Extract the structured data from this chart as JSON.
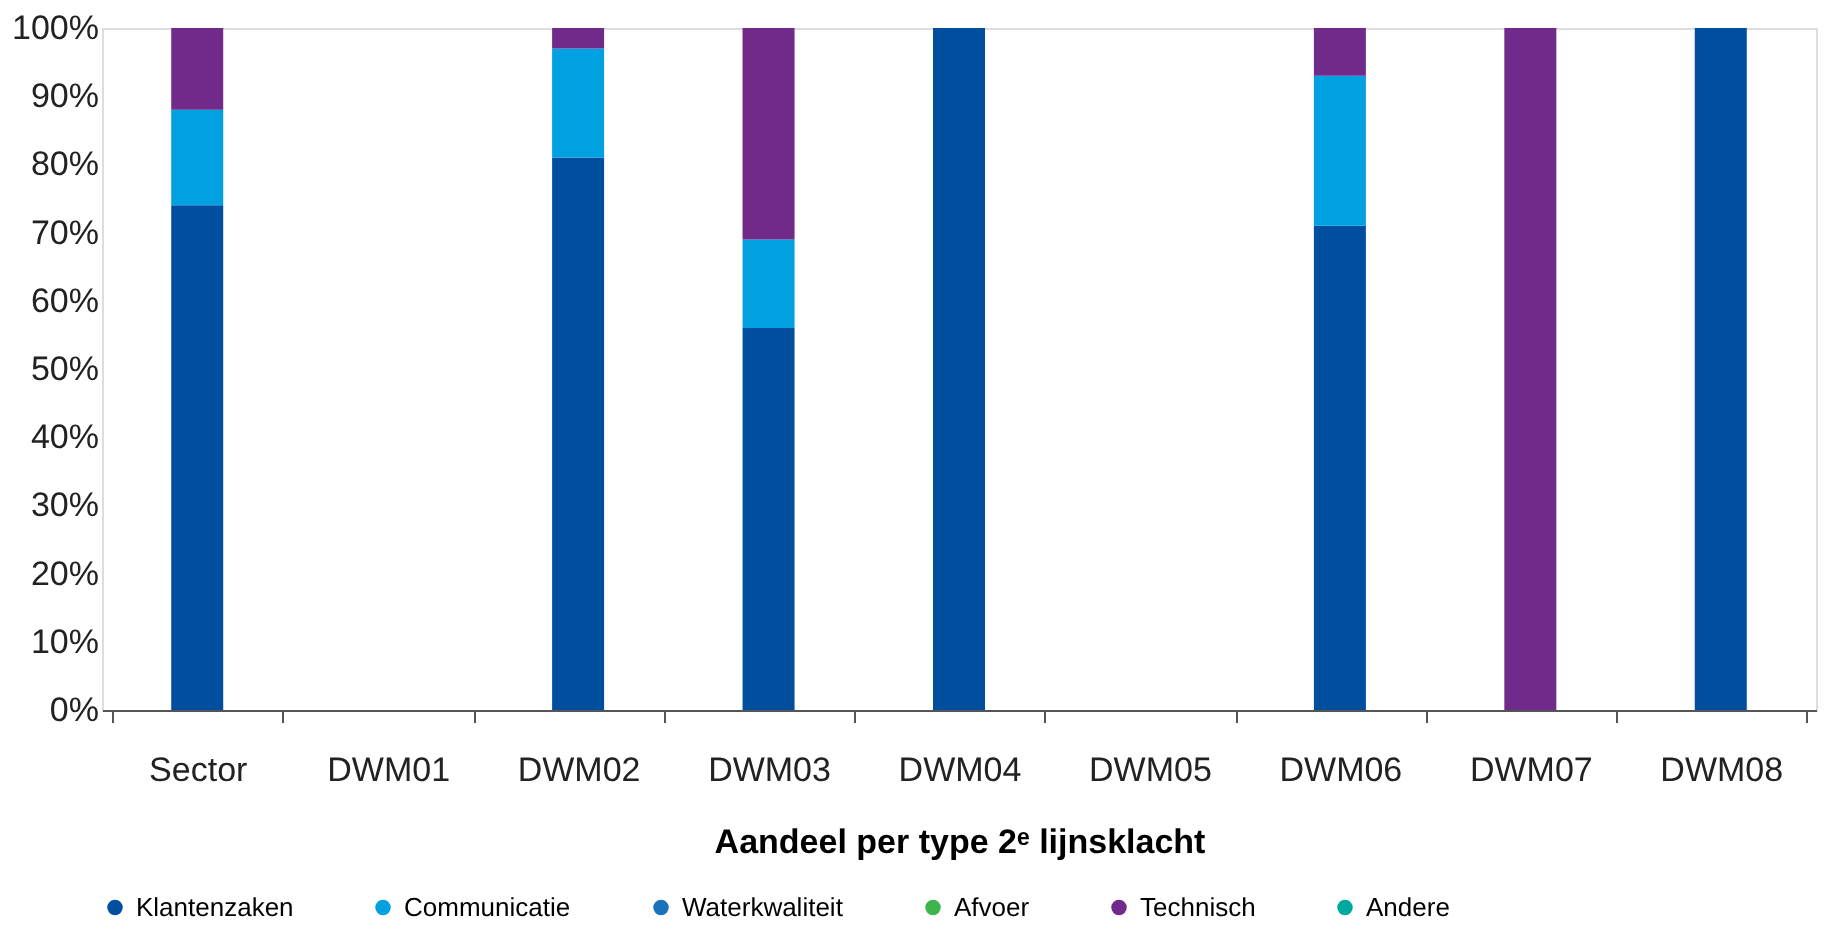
{
  "chart_data": {
    "type": "bar",
    "stacked": true,
    "xlabel": "Aandeel per type 2ᵉ lijnsklacht",
    "categories": [
      "Sector",
      "DWM01",
      "DWM02",
      "DWM03",
      "DWM04",
      "DWM05",
      "DWM06",
      "DWM07",
      "DWM08"
    ],
    "series": [
      {
        "name": "Klantenzaken",
        "color": "#004f9f",
        "values": [
          74,
          0,
          81,
          56,
          100,
          0,
          71,
          0,
          100
        ]
      },
      {
        "name": "Communicatie",
        "color": "#00a0e1",
        "values": [
          14,
          0,
          16,
          13,
          0,
          0,
          22,
          0,
          0
        ]
      },
      {
        "name": "Waterkwaliteit",
        "color": "#1a73b8",
        "values": [
          0,
          0,
          0,
          0,
          0,
          0,
          0,
          0,
          0
        ]
      },
      {
        "name": "Afvoer",
        "color": "#3cb54a",
        "values": [
          0,
          0,
          0,
          0,
          0,
          0,
          0,
          0,
          0
        ]
      },
      {
        "name": "Technisch",
        "color": "#6f2a8a",
        "values": [
          12,
          0,
          3,
          31,
          0,
          0,
          7,
          100,
          0
        ]
      },
      {
        "name": "Andere",
        "color": "#00a99d",
        "values": [
          0,
          0,
          0,
          0,
          0,
          0,
          0,
          0,
          0
        ]
      }
    ],
    "ylim": [
      0,
      100
    ],
    "yticks": [
      {
        "value": 0,
        "label": "0%"
      },
      {
        "value": 10,
        "label": "10%"
      },
      {
        "value": 20,
        "label": "20%"
      },
      {
        "value": 30,
        "label": "30%"
      },
      {
        "value": 40,
        "label": "40%"
      },
      {
        "value": 50,
        "label": "50%"
      },
      {
        "value": 60,
        "label": "60%"
      },
      {
        "value": 70,
        "label": "70%"
      },
      {
        "value": 80,
        "label": "80%"
      },
      {
        "value": 90,
        "label": "90%"
      },
      {
        "value": 100,
        "label": "100%"
      }
    ],
    "grid": false,
    "legend": "bottom"
  }
}
